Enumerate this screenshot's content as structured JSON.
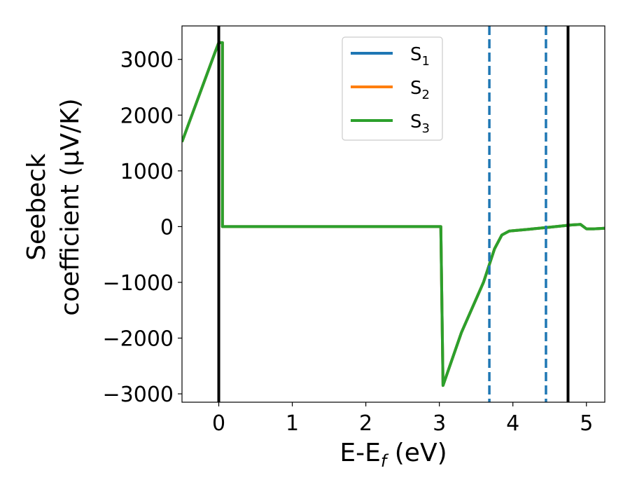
{
  "chart_data": {
    "type": "line",
    "title": "",
    "xlabel": "E-E",
    "xlabel_subscript": "f",
    "xlabel_unit": " (eV)",
    "ylabel_line1": "Seebeck",
    "ylabel_line2": "coefficient  (μV/K)",
    "xlim": [
      -0.5,
      5.25
    ],
    "ylim": [
      -3150,
      3600
    ],
    "x_ticks": [
      0,
      1,
      2,
      3,
      4,
      5
    ],
    "x_tick_labels": [
      "0",
      "1",
      "2",
      "3",
      "4",
      "5"
    ],
    "y_ticks": [
      3000,
      2000,
      1000,
      0,
      -1000,
      -2000,
      -3000
    ],
    "y_tick_labels": [
      "3000",
      "2000",
      "1000",
      "0",
      "−1000",
      "−2000",
      "−3000"
    ],
    "grid": false,
    "legend_position": "upper center",
    "series": [
      {
        "name": "S",
        "subscript": "1",
        "color": "#1f77b4",
        "x": [
          -0.5,
          -0.05,
          0.0,
          0.05,
          0.05,
          1.0,
          2.0,
          3.02,
          3.02,
          3.05,
          3.3,
          3.6,
          3.75,
          3.85,
          3.95,
          4.2,
          4.5,
          4.8,
          4.92,
          5.0,
          5.1,
          5.25
        ],
        "y": [
          1520,
          3130,
          3300,
          3300,
          0,
          0,
          0,
          0,
          0,
          -2850,
          -1900,
          -1000,
          -400,
          -150,
          -80,
          -50,
          -10,
          30,
          40,
          -40,
          -40,
          -30
        ]
      },
      {
        "name": "S",
        "subscript": "2",
        "color": "#ff7f0e",
        "x": [
          -0.5,
          -0.05,
          0.0,
          0.05,
          0.05,
          1.0,
          2.0,
          3.02,
          3.02,
          3.05,
          3.3,
          3.6,
          3.75,
          3.85,
          3.95,
          4.2,
          4.5,
          4.8,
          4.92,
          5.0,
          5.1,
          5.25
        ],
        "y": [
          1520,
          3130,
          3300,
          3300,
          0,
          0,
          0,
          0,
          0,
          -2850,
          -1900,
          -1000,
          -400,
          -150,
          -80,
          -50,
          -10,
          30,
          40,
          -40,
          -40,
          -30
        ]
      },
      {
        "name": "S",
        "subscript": "3",
        "color": "#2ca02c",
        "x": [
          -0.5,
          -0.05,
          0.0,
          0.05,
          0.05,
          1.0,
          2.0,
          3.02,
          3.02,
          3.05,
          3.3,
          3.6,
          3.75,
          3.85,
          3.95,
          4.2,
          4.5,
          4.8,
          4.92,
          5.0,
          5.1,
          5.25
        ],
        "y": [
          1520,
          3130,
          3300,
          3300,
          0,
          0,
          0,
          0,
          0,
          -2850,
          -1900,
          -1000,
          -400,
          -150,
          -80,
          -50,
          -10,
          30,
          40,
          -40,
          -40,
          -30
        ]
      }
    ],
    "vertical_lines": [
      {
        "x": 0.0,
        "style": "solid",
        "color": "#000000"
      },
      {
        "x": 4.75,
        "style": "solid",
        "color": "#000000"
      },
      {
        "x": 3.68,
        "style": "dashed",
        "color": "#1f77b4"
      },
      {
        "x": 4.45,
        "style": "dashed",
        "color": "#1f77b4"
      }
    ]
  }
}
